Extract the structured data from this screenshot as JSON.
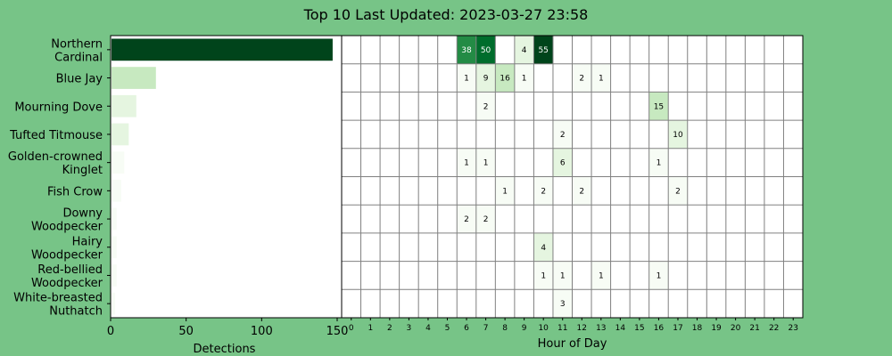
{
  "title": "Top 10 Last Updated: 2023-03-27 23:58",
  "colors": {
    "background": "#77c487",
    "plot_background": "#ffffff",
    "grid": "#808080",
    "scale": [
      "#f7fcf5",
      "#e5f5e0",
      "#c7e9c0",
      "#a1d99b",
      "#74c476",
      "#41ab5d",
      "#238b45",
      "#006d2c",
      "#00441b"
    ]
  },
  "chart_data": [
    {
      "type": "bar",
      "orientation": "horizontal",
      "categories": [
        [
          "Northern",
          "Cardinal"
        ],
        [
          "Blue Jay"
        ],
        [
          "Mourning Dove"
        ],
        [
          "Tufted Titmouse"
        ],
        [
          "Golden-crowned",
          "Kinglet"
        ],
        [
          "Fish Crow"
        ],
        [
          "Downy",
          "Woodpecker"
        ],
        [
          "Hairy",
          "Woodpecker"
        ],
        [
          "Red-bellied",
          "Woodpecker"
        ],
        [
          "White-breasted",
          "Nuthatch"
        ]
      ],
      "values": [
        147,
        30,
        17,
        12,
        9,
        7,
        4,
        4,
        4,
        3
      ],
      "xlabel": "Detections",
      "xlim": [
        0,
        150
      ],
      "xticks": [
        0,
        50,
        100,
        150
      ]
    },
    {
      "type": "heatmap",
      "xlabel": "Hour of Day",
      "x": [
        0,
        1,
        2,
        3,
        4,
        5,
        6,
        7,
        8,
        9,
        10,
        11,
        12,
        13,
        14,
        15,
        16,
        17,
        18,
        19,
        20,
        21,
        22,
        23
      ],
      "rows": 10,
      "cells": [
        {
          "row": 0,
          "hour": 6,
          "value": 38
        },
        {
          "row": 0,
          "hour": 7,
          "value": 50
        },
        {
          "row": 0,
          "hour": 9,
          "value": 4
        },
        {
          "row": 0,
          "hour": 10,
          "value": 55
        },
        {
          "row": 1,
          "hour": 6,
          "value": 1
        },
        {
          "row": 1,
          "hour": 7,
          "value": 9
        },
        {
          "row": 1,
          "hour": 8,
          "value": 16
        },
        {
          "row": 1,
          "hour": 9,
          "value": 1
        },
        {
          "row": 1,
          "hour": 12,
          "value": 2
        },
        {
          "row": 1,
          "hour": 13,
          "value": 1
        },
        {
          "row": 2,
          "hour": 7,
          "value": 2
        },
        {
          "row": 2,
          "hour": 16,
          "value": 15
        },
        {
          "row": 3,
          "hour": 11,
          "value": 2
        },
        {
          "row": 3,
          "hour": 17,
          "value": 10
        },
        {
          "row": 4,
          "hour": 6,
          "value": 1
        },
        {
          "row": 4,
          "hour": 7,
          "value": 1
        },
        {
          "row": 4,
          "hour": 11,
          "value": 6
        },
        {
          "row": 4,
          "hour": 16,
          "value": 1
        },
        {
          "row": 5,
          "hour": 8,
          "value": 1
        },
        {
          "row": 5,
          "hour": 10,
          "value": 2
        },
        {
          "row": 5,
          "hour": 12,
          "value": 2
        },
        {
          "row": 5,
          "hour": 17,
          "value": 2
        },
        {
          "row": 6,
          "hour": 6,
          "value": 2
        },
        {
          "row": 6,
          "hour": 7,
          "value": 2
        },
        {
          "row": 7,
          "hour": 10,
          "value": 4
        },
        {
          "row": 8,
          "hour": 10,
          "value": 1
        },
        {
          "row": 8,
          "hour": 11,
          "value": 1
        },
        {
          "row": 8,
          "hour": 13,
          "value": 1
        },
        {
          "row": 8,
          "hour": 16,
          "value": 1
        },
        {
          "row": 9,
          "hour": 11,
          "value": 3
        }
      ]
    }
  ]
}
